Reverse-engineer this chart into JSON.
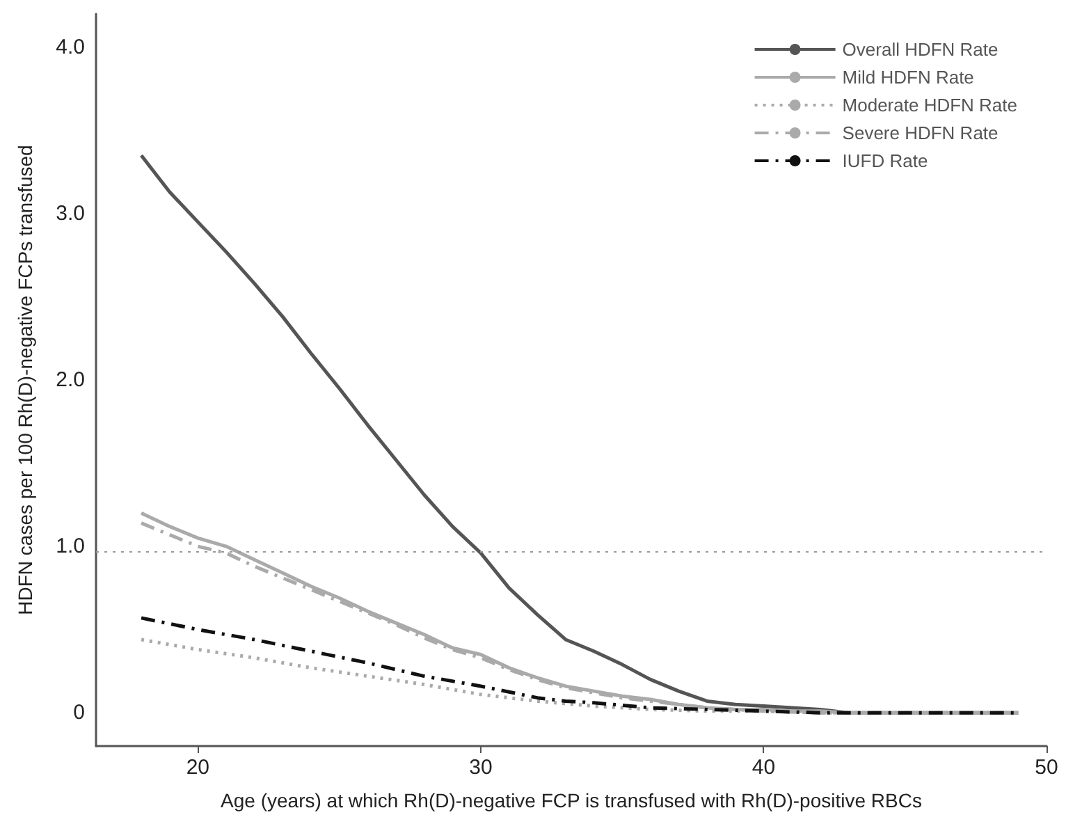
{
  "chart_data": {
    "type": "line",
    "xlabel": "Age (years) at which Rh(D)-negative FCP is transfused with Rh(D)-positive RBCs",
    "ylabel": "HDFN cases per 100 Rh(D)-negative FCPs transfused",
    "xlim": [
      16.4,
      50
    ],
    "xticks": [
      20,
      30,
      40,
      50
    ],
    "ylim": [
      -0.2,
      4.2
    ],
    "yticks": [
      0,
      {
        "value": 1,
        "label": "1.0"
      },
      {
        "value": 2,
        "label": "2.0"
      },
      {
        "value": 3,
        "label": "3.0"
      },
      {
        "value": 4,
        "label": "4.0"
      }
    ],
    "grid": false,
    "legend": "top right",
    "marker": "none",
    "ref_lines": [
      {
        "axis": "y",
        "value": 0.97,
        "color": "#999999",
        "line_style": "dotted"
      }
    ],
    "series": [
      {
        "name": "Overall HDFN Rate",
        "color": "#555555",
        "line_style": "solid",
        "x": [
          18,
          19,
          20,
          21,
          22,
          23,
          24,
          25,
          26,
          27,
          28,
          29,
          30,
          31,
          32,
          33,
          34,
          35,
          36,
          37,
          38,
          39,
          40,
          41,
          42,
          43,
          49
        ],
        "values": [
          3.35,
          3.13,
          2.95,
          2.77,
          2.58,
          2.38,
          2.16,
          1.95,
          1.73,
          1.52,
          1.31,
          1.12,
          0.96,
          0.75,
          0.59,
          0.44,
          0.37,
          0.29,
          0.2,
          0.13,
          0.07,
          0.05,
          0.04,
          0.03,
          0.02,
          0,
          0
        ]
      },
      {
        "name": "Mild HDFN Rate",
        "color": "#aaaaaa",
        "line_style": "solid",
        "x": [
          18,
          19,
          20,
          21,
          22,
          23,
          24,
          25,
          26,
          27,
          28,
          29,
          30,
          31,
          32,
          33,
          34,
          35,
          36,
          37,
          38,
          39,
          40,
          41,
          42,
          43,
          49
        ],
        "values": [
          1.2,
          1.12,
          1.05,
          1.0,
          0.92,
          0.84,
          0.76,
          0.69,
          0.61,
          0.54,
          0.47,
          0.39,
          0.35,
          0.27,
          0.21,
          0.16,
          0.13,
          0.1,
          0.08,
          0.05,
          0.03,
          0.02,
          0.02,
          0.01,
          0.01,
          0,
          0
        ]
      },
      {
        "name": "Moderate HDFN Rate",
        "color": "#aaaaaa",
        "line_style": "dotted",
        "x": [
          18,
          20,
          22,
          24,
          26,
          28,
          30,
          32,
          34,
          36,
          38,
          40,
          42,
          49
        ],
        "values": [
          0.44,
          0.38,
          0.33,
          0.27,
          0.22,
          0.17,
          0.11,
          0.07,
          0.04,
          0.02,
          0.01,
          0.01,
          0,
          0
        ]
      },
      {
        "name": "Severe HDFN Rate",
        "color": "#aaaaaa",
        "line_style": "dashdot",
        "x": [
          18,
          19,
          20,
          21,
          22,
          23,
          24,
          25,
          26,
          27,
          28,
          29,
          30,
          31,
          32,
          33,
          34,
          35,
          36,
          37,
          38,
          40,
          42,
          49
        ],
        "values": [
          1.14,
          1.07,
          1.0,
          0.96,
          0.88,
          0.81,
          0.74,
          0.67,
          0.6,
          0.53,
          0.45,
          0.38,
          0.33,
          0.26,
          0.2,
          0.15,
          0.12,
          0.09,
          0.07,
          0.05,
          0.03,
          0.01,
          0,
          0
        ]
      },
      {
        "name": "IUFD Rate",
        "color": "#111111",
        "line_style": "dashdot",
        "x": [
          18,
          20,
          22,
          24,
          26,
          28,
          30,
          32,
          33,
          34,
          36,
          38,
          40,
          42,
          49
        ],
        "values": [
          0.57,
          0.5,
          0.44,
          0.37,
          0.3,
          0.22,
          0.16,
          0.09,
          0.07,
          0.06,
          0.03,
          0.02,
          0.01,
          0,
          0
        ]
      }
    ]
  }
}
